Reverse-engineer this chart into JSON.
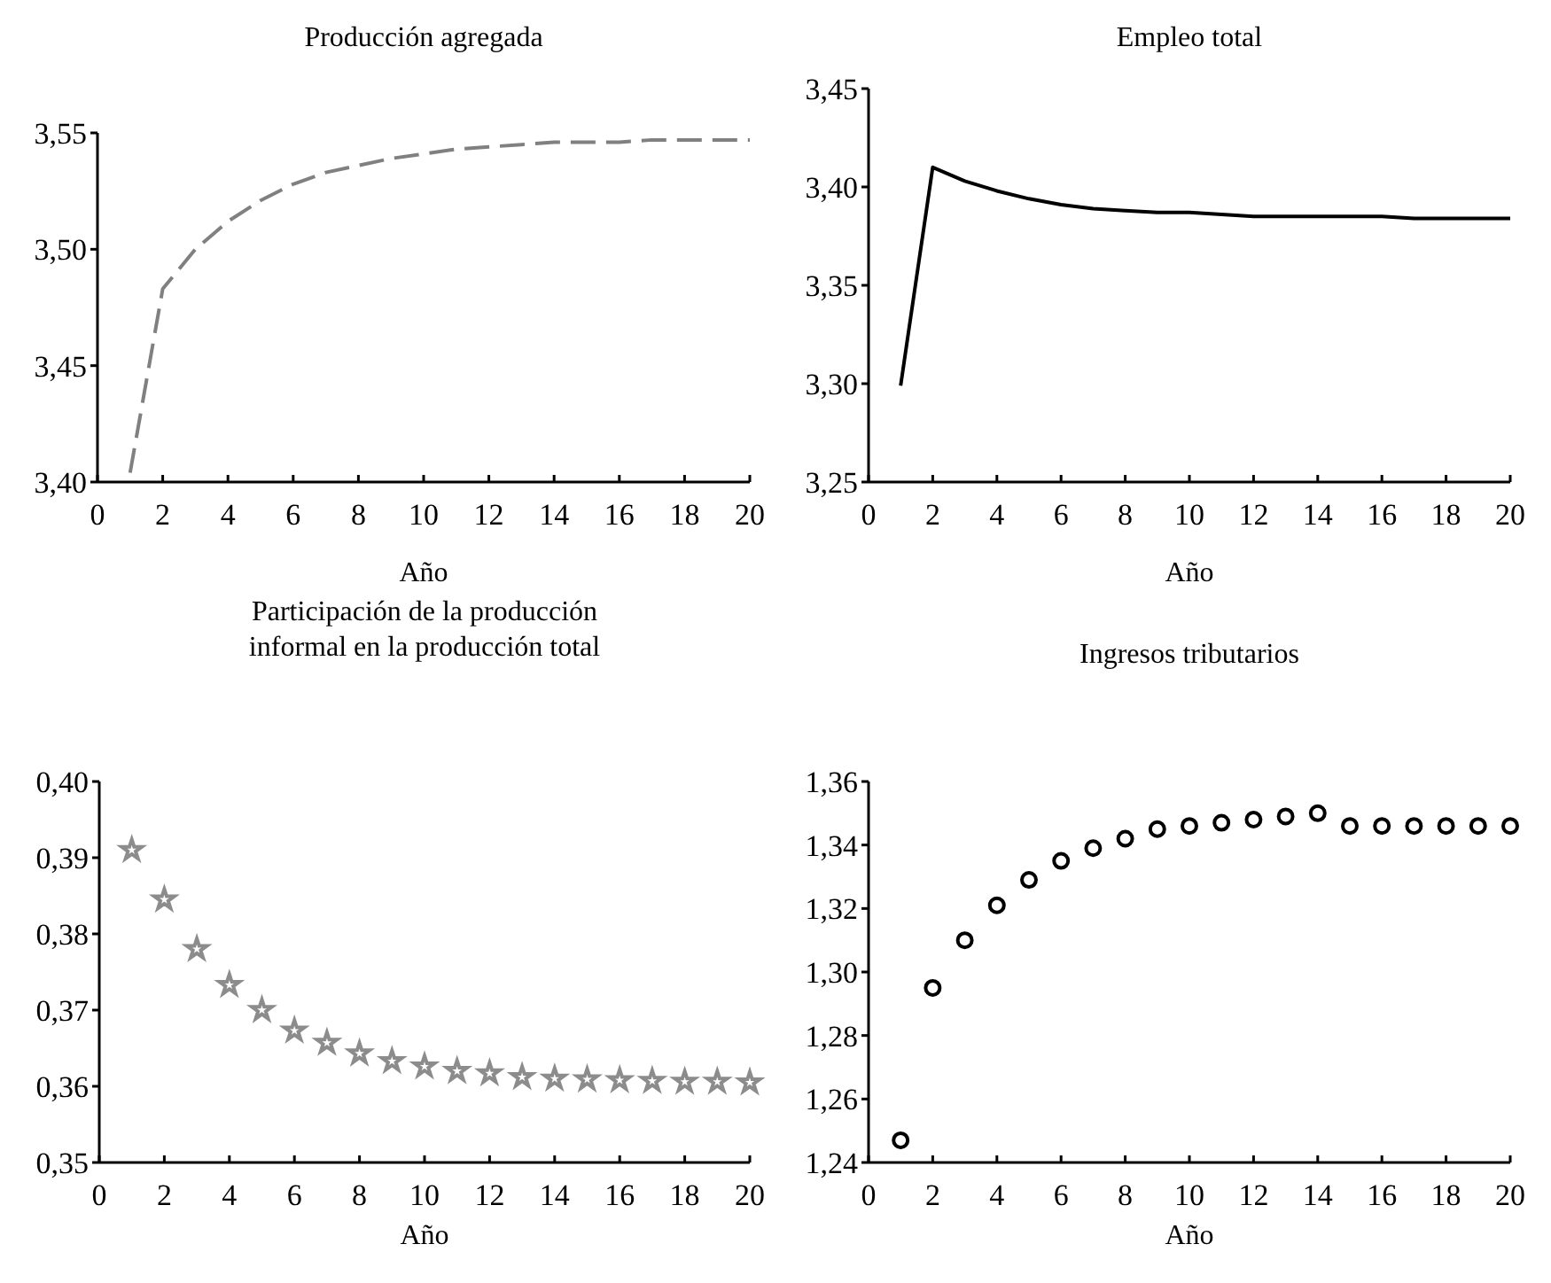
{
  "chart_data": [
    {
      "type": "line",
      "title": "Producción agregada",
      "xlabel": "Año",
      "x": [
        1,
        2,
        3,
        4,
        5,
        6,
        7,
        8,
        9,
        10,
        11,
        12,
        13,
        14,
        15,
        16,
        17,
        18,
        19,
        20
      ],
      "series": [
        {
          "color": "#808080",
          "values": [
            3.404,
            3.483,
            3.5,
            3.512,
            3.521,
            3.528,
            3.533,
            3.536,
            3.539,
            3.541,
            3.543,
            3.544,
            3.545,
            3.546,
            3.546,
            3.546,
            3.547,
            3.547,
            3.547,
            3.547
          ]
        }
      ],
      "line_style": "dashed",
      "xlim": [
        0,
        20
      ],
      "xticks": [
        0,
        2,
        4,
        6,
        8,
        10,
        12,
        14,
        16,
        18,
        20
      ],
      "ylim": [
        3.4,
        3.55
      ],
      "yticks": [
        {
          "value": 3.4,
          "label": "3,40"
        },
        {
          "value": 3.45,
          "label": "3,45"
        },
        {
          "value": 3.5,
          "label": "3,50"
        },
        {
          "value": 3.55,
          "label": "3,55"
        }
      ]
    },
    {
      "type": "line",
      "title": "Empleo total",
      "xlabel": "Año",
      "x": [
        1,
        2,
        3,
        4,
        5,
        6,
        7,
        8,
        9,
        10,
        11,
        12,
        13,
        14,
        15,
        16,
        17,
        18,
        19,
        20
      ],
      "series": [
        {
          "color": "#000000",
          "values": [
            3.299,
            3.41,
            3.403,
            3.398,
            3.394,
            3.391,
            3.389,
            3.388,
            3.387,
            3.387,
            3.386,
            3.385,
            3.385,
            3.385,
            3.385,
            3.385,
            3.384,
            3.384,
            3.384,
            3.384
          ]
        }
      ],
      "line_style": "solid",
      "xlim": [
        0,
        20
      ],
      "xticks": [
        0,
        2,
        4,
        6,
        8,
        10,
        12,
        14,
        16,
        18,
        20
      ],
      "ylim": [
        3.25,
        3.45
      ],
      "yticks": [
        {
          "value": 3.25,
          "label": "3,25"
        },
        {
          "value": 3.3,
          "label": "3,30"
        },
        {
          "value": 3.35,
          "label": "3,35"
        },
        {
          "value": 3.4,
          "label": "3,40"
        },
        {
          "value": 3.45,
          "label": "3,45"
        }
      ]
    },
    {
      "type": "scatter",
      "title": "Participación de la producción\ninformal en la producción total",
      "xlabel": "Año",
      "x": [
        1,
        2,
        3,
        4,
        5,
        6,
        7,
        8,
        9,
        10,
        11,
        12,
        13,
        14,
        15,
        16,
        17,
        18,
        19,
        20
      ],
      "series": [
        {
          "color": "#8c8c8c",
          "values": [
            0.391,
            0.3845,
            0.378,
            0.3733,
            0.37,
            0.3673,
            0.3657,
            0.3643,
            0.3633,
            0.3626,
            0.362,
            0.3617,
            0.3612,
            0.361,
            0.3609,
            0.3608,
            0.3607,
            0.3606,
            0.3606,
            0.3605
          ]
        }
      ],
      "marker": "star",
      "xlim": [
        0,
        20
      ],
      "xticks": [
        0,
        2,
        4,
        6,
        8,
        10,
        12,
        14,
        16,
        18,
        20
      ],
      "ylim": [
        0.35,
        0.4
      ],
      "yticks": [
        {
          "value": 0.35,
          "label": "0,35"
        },
        {
          "value": 0.36,
          "label": "0,36"
        },
        {
          "value": 0.37,
          "label": "0,37"
        },
        {
          "value": 0.38,
          "label": "0,38"
        },
        {
          "value": 0.39,
          "label": "0,39"
        },
        {
          "value": 0.4,
          "label": "0,40"
        }
      ]
    },
    {
      "type": "scatter",
      "title": "Ingresos tributarios",
      "xlabel": "Año",
      "x": [
        1,
        2,
        3,
        4,
        5,
        6,
        7,
        8,
        9,
        10,
        11,
        12,
        13,
        14,
        15,
        16,
        17,
        18,
        19,
        20
      ],
      "series": [
        {
          "color": "#000000",
          "values": [
            1.247,
            1.295,
            1.31,
            1.321,
            1.329,
            1.335,
            1.339,
            1.342,
            1.345,
            1.346,
            1.347,
            1.348,
            1.349,
            1.35,
            1.346,
            1.346,
            1.346,
            1.346,
            1.346,
            1.346
          ]
        }
      ],
      "marker": "circle",
      "xlim": [
        0,
        20
      ],
      "xticks": [
        0,
        2,
        4,
        6,
        8,
        10,
        12,
        14,
        16,
        18,
        20
      ],
      "ylim": [
        1.24,
        1.36
      ],
      "yticks": [
        {
          "value": 1.24,
          "label": "1,24"
        },
        {
          "value": 1.26,
          "label": "1,26"
        },
        {
          "value": 1.28,
          "label": "1,28"
        },
        {
          "value": 1.3,
          "label": "1,30"
        },
        {
          "value": 1.32,
          "label": "1,32"
        },
        {
          "value": 1.34,
          "label": "1,34"
        },
        {
          "value": 1.36,
          "label": "1,36"
        }
      ]
    }
  ]
}
